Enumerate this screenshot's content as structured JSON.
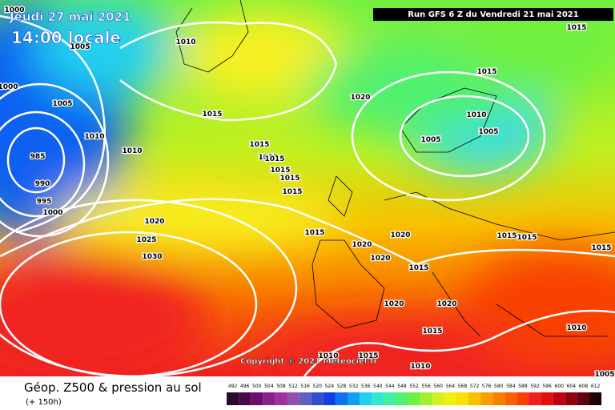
{
  "header": {
    "date": "Jeudi 27 mai 2021",
    "time": "14:00 locale",
    "run": "Run GFS 6 Z du Vendredi 21 mai 2021"
  },
  "copyright": "Copyright © 2021 Meteociel.fr",
  "footer": {
    "title": "Géop. Z500 & pression au sol",
    "subtitle": "(+ 150h)"
  },
  "isobar_labels": [
    1000,
    1005,
    1010,
    1000,
    1005,
    1015,
    1020,
    1015,
    1015,
    1010,
    1005,
    1005,
    1010,
    1010,
    985,
    1015,
    1015,
    1015,
    1015,
    1015,
    1015,
    990,
    995,
    1000,
    1020,
    1025,
    1030,
    1015,
    1020,
    1020,
    1020,
    1015,
    1015,
    1015,
    1015,
    1020,
    1020,
    1015,
    1010,
    1010,
    1015,
    1010,
    1005
  ],
  "scale": {
    "labels": [
      492,
      496,
      500,
      504,
      508,
      512,
      516,
      520,
      524,
      528,
      532,
      536,
      540,
      544,
      548,
      552,
      556,
      560,
      564,
      568,
      572,
      576,
      580,
      584,
      588,
      592,
      596,
      600,
      604,
      608,
      612
    ],
    "colors": [
      "#2a0a2a",
      "#4a0a4a",
      "#6a106a",
      "#8a208a",
      "#a030a0",
      "#9050b0",
      "#6060c0",
      "#3050d0",
      "#1040e0",
      "#1070f0",
      "#10a0f0",
      "#20d0f0",
      "#30e8d0",
      "#40f0a0",
      "#50f070",
      "#70f040",
      "#a0f030",
      "#d0f020",
      "#f0f010",
      "#f8e000",
      "#f8c000",
      "#f8a000",
      "#f88000",
      "#f86000",
      "#f84000",
      "#f02020",
      "#e01010",
      "#c00010",
      "#900010",
      "#600010",
      "#200008"
    ]
  }
}
